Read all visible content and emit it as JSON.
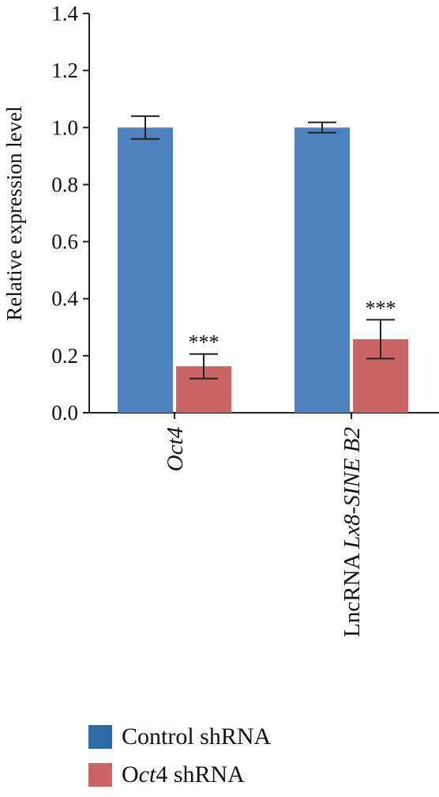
{
  "chart_data": {
    "type": "bar",
    "title": "",
    "xlabel": "",
    "ylabel": "Relative expression level",
    "ylim": [
      0,
      1.4
    ],
    "yticks": [
      "0.0",
      "0.2",
      "0.4",
      "0.6",
      "0.8",
      "1.0",
      "1.2",
      "1.4"
    ],
    "categories": [
      {
        "prefix": "",
        "italic": "Oct4"
      },
      {
        "prefix": "LncRNA ",
        "italic": "Lx8-SINE B2"
      }
    ],
    "series": [
      {
        "name": "Control shRNA",
        "name_prefix": "",
        "name_italic": "",
        "name_plain": "Control shRNA",
        "color": "#4f83bf",
        "values": [
          1.0,
          1.0
        ],
        "errors": [
          0.04,
          0.018
        ],
        "annotations": [
          "",
          ""
        ]
      },
      {
        "name": "Oct4 shRNA",
        "name_prefix": "O",
        "name_italic": "ct",
        "name_plain": "4 shRNA",
        "color": "#cc6666",
        "values": [
          0.163,
          0.258
        ],
        "errors": [
          0.043,
          0.068
        ],
        "annotations": [
          "***",
          "***"
        ]
      }
    ],
    "legend_swatch_colors": [
      "#2e6aa3",
      "#cc6666"
    ],
    "grid": false,
    "legend_position": "bottom-left"
  }
}
